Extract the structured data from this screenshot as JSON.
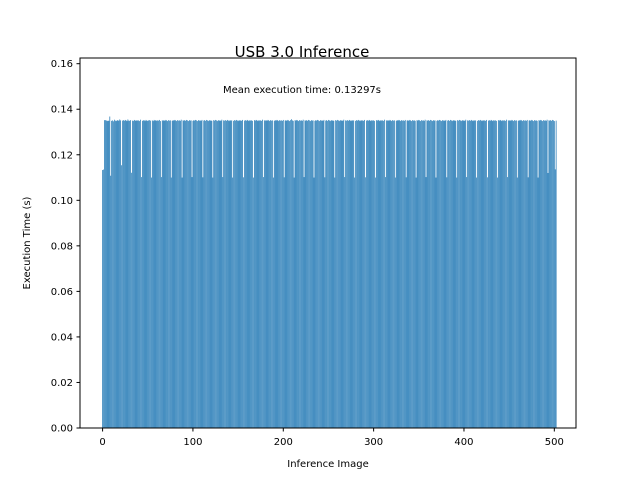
{
  "chart_data": {
    "type": "bar",
    "title": "USB 3.0 Inference",
    "xlabel": "Inference Image",
    "ylabel": "Execution Time (s)",
    "annotation": "Mean execution time: 0.13297s",
    "xlim": [
      -25,
      524
    ],
    "ylim": [
      0,
      0.1625
    ],
    "xticks": [
      0,
      100,
      200,
      300,
      400,
      500
    ],
    "yticks": [
      0.0,
      0.02,
      0.04,
      0.06,
      0.08,
      0.1,
      0.12,
      0.14,
      0.16
    ],
    "ytick_labels": [
      "0.00",
      "0.02",
      "0.04",
      "0.06",
      "0.08",
      "0.10",
      "0.12",
      "0.14",
      "0.16"
    ],
    "grid": false,
    "bar_color": "#1f77b4",
    "bar_width": 0.8,
    "x_start": 0,
    "count": 500,
    "values": [
      0.1133,
      0.1135,
      0.1352,
      0.1352,
      0.1351,
      0.1348,
      0.135,
      0.1349,
      0.1368,
      0.1108,
      0.1349,
      0.1351,
      0.1347,
      0.1354,
      0.135,
      0.1348,
      0.1351,
      0.1352,
      0.1349,
      0.1355,
      0.1351,
      0.1154,
      0.135,
      0.1352,
      0.1349,
      0.1353,
      0.1351,
      0.1348,
      0.1355,
      0.135,
      0.1349,
      0.1352,
      0.1121,
      0.135,
      0.1348,
      0.1353,
      0.1351,
      0.1349,
      0.1352,
      0.135,
      0.1351,
      0.1348,
      0.1354,
      0.1102,
      0.1349,
      0.1351,
      0.1352,
      0.1348,
      0.1353,
      0.135,
      0.1349,
      0.1351,
      0.1352,
      0.135,
      0.11,
      0.1351,
      0.1348,
      0.1353,
      0.135,
      0.1352,
      0.1349,
      0.1351,
      0.135,
      0.1353,
      0.1348,
      0.1102,
      0.1351,
      0.135,
      0.1352,
      0.1349,
      0.1353,
      0.1351,
      0.1348,
      0.1352,
      0.135,
      0.1351,
      0.11,
      0.1349,
      0.1352,
      0.135,
      0.1353,
      0.1351,
      0.1348,
      0.1352,
      0.135,
      0.1351,
      0.1349,
      0.1354,
      0.11,
      0.1351,
      0.135,
      0.1352,
      0.1349,
      0.1353,
      0.1351,
      0.1348,
      0.1352,
      0.135,
      0.1351,
      0.1102,
      0.1349,
      0.1352,
      0.135,
      0.1353,
      0.1351,
      0.1348,
      0.1352,
      0.135,
      0.1351,
      0.1349,
      0.1353,
      0.1101,
      0.135,
      0.1352,
      0.1349,
      0.1353,
      0.1351,
      0.1348,
      0.1352,
      0.135,
      0.1351,
      0.1349,
      0.11,
      0.1352,
      0.135,
      0.1353,
      0.1351,
      0.1348,
      0.1352,
      0.135,
      0.1351,
      0.1349,
      0.1354,
      0.1102,
      0.1351,
      0.135,
      0.1352,
      0.1349,
      0.1353,
      0.1351,
      0.1348,
      0.1352,
      0.135,
      0.1351,
      0.11,
      0.1349,
      0.1352,
      0.135,
      0.1353,
      0.1351,
      0.1348,
      0.1352,
      0.135,
      0.1351,
      0.1349,
      0.1353,
      0.1101,
      0.135,
      0.1352,
      0.1349,
      0.1353,
      0.1351,
      0.1348,
      0.1352,
      0.135,
      0.1351,
      0.1349,
      0.11,
      0.1352,
      0.135,
      0.1353,
      0.1351,
      0.1348,
      0.1352,
      0.135,
      0.1351,
      0.1349,
      0.1354,
      0.1102,
      0.1351,
      0.135,
      0.1352,
      0.1349,
      0.1353,
      0.1351,
      0.1348,
      0.1352,
      0.135,
      0.1351,
      0.11,
      0.1349,
      0.1352,
      0.135,
      0.1353,
      0.1351,
      0.1348,
      0.1352,
      0.135,
      0.1351,
      0.1349,
      0.1353,
      0.1101,
      0.135,
      0.1352,
      0.1349,
      0.1353,
      0.1351,
      0.1348,
      0.1352,
      0.1356,
      0.1351,
      0.1349,
      0.11,
      0.1352,
      0.135,
      0.1353,
      0.1351,
      0.1348,
      0.1352,
      0.135,
      0.1351,
      0.1349,
      0.1354,
      0.1102,
      0.1351,
      0.135,
      0.1352,
      0.1349,
      0.1353,
      0.1351,
      0.1348,
      0.1352,
      0.135,
      0.1351,
      0.11,
      0.1349,
      0.1352,
      0.135,
      0.1353,
      0.1351,
      0.1348,
      0.1352,
      0.135,
      0.1351,
      0.1349,
      0.1353,
      0.1101,
      0.135,
      0.1352,
      0.1349,
      0.1353,
      0.1351,
      0.1348,
      0.1352,
      0.135,
      0.1351,
      0.1349,
      0.11,
      0.1352,
      0.135,
      0.1353,
      0.1351,
      0.1348,
      0.1352,
      0.135,
      0.1351,
      0.1349,
      0.1354,
      0.1102,
      0.1351,
      0.135,
      0.1352,
      0.1349,
      0.1353,
      0.1351,
      0.1348,
      0.1352,
      0.135,
      0.1351,
      0.11,
      0.1349,
      0.1352,
      0.135,
      0.1353,
      0.1351,
      0.1348,
      0.1352,
      0.135,
      0.1351,
      0.1349,
      0.1353,
      0.1101,
      0.135,
      0.1352,
      0.1349,
      0.1353,
      0.1351,
      0.1348,
      0.1352,
      0.135,
      0.1351,
      0.1349,
      0.11,
      0.1352,
      0.135,
      0.1353,
      0.1351,
      0.1348,
      0.1352,
      0.135,
      0.1351,
      0.1349,
      0.1354,
      0.1102,
      0.1351,
      0.135,
      0.1352,
      0.1349,
      0.1353,
      0.1351,
      0.1348,
      0.1352,
      0.135,
      0.1351,
      0.11,
      0.1349,
      0.1352,
      0.135,
      0.1353,
      0.1351,
      0.1348,
      0.1352,
      0.135,
      0.1351,
      0.1349,
      0.1353,
      0.1101,
      0.135,
      0.1352,
      0.1349,
      0.1353,
      0.1351,
      0.1348,
      0.1352,
      0.135,
      0.1351,
      0.1349,
      0.11,
      0.1352,
      0.135,
      0.1353,
      0.1351,
      0.1348,
      0.1352,
      0.135,
      0.1351,
      0.1349,
      0.1354,
      0.1102,
      0.1351,
      0.135,
      0.1352,
      0.1349,
      0.1353,
      0.1351,
      0.1348,
      0.1352,
      0.135,
      0.1351,
      0.11,
      0.1349,
      0.1352,
      0.135,
      0.1353,
      0.1351,
      0.1348,
      0.1352,
      0.135,
      0.1351,
      0.1349,
      0.1353,
      0.1101,
      0.135,
      0.1352,
      0.1349,
      0.1353,
      0.1351,
      0.1348,
      0.1352,
      0.135,
      0.1351,
      0.1349,
      0.11,
      0.1352,
      0.135,
      0.1353,
      0.1351,
      0.1348,
      0.1352,
      0.135,
      0.1351,
      0.1349,
      0.1354,
      0.1102,
      0.1351,
      0.135,
      0.1352,
      0.1349,
      0.1353,
      0.1351,
      0.1348,
      0.1352,
      0.135,
      0.1351,
      0.11,
      0.1349,
      0.1352,
      0.135,
      0.1353,
      0.1351,
      0.1348,
      0.1352,
      0.135,
      0.1351,
      0.1349,
      0.1353,
      0.1101,
      0.135,
      0.1352,
      0.1349,
      0.1353,
      0.1351,
      0.1348,
      0.1352,
      0.135,
      0.1351,
      0.1349,
      0.11,
      0.1352,
      0.135,
      0.1353,
      0.1351,
      0.1348,
      0.1352,
      0.135,
      0.1351,
      0.1349,
      0.1354,
      0.1102,
      0.1351,
      0.135,
      0.1352,
      0.1349,
      0.1353,
      0.1351,
      0.1348,
      0.1352,
      0.135,
      0.1351,
      0.11,
      0.1349,
      0.1352,
      0.135,
      0.1353,
      0.1351,
      0.1348,
      0.1352,
      0.135,
      0.1351,
      0.1349,
      0.1353,
      0.1101,
      0.135,
      0.1352,
      0.1349,
      0.1353,
      0.1351,
      0.1348,
      0.1352,
      0.135,
      0.1351,
      0.1349,
      0.11,
      0.1352,
      0.135,
      0.1353,
      0.1351,
      0.1348,
      0.1352,
      0.135,
      0.1351,
      0.1349,
      0.1354,
      0.112,
      0.1351,
      0.135,
      0.1352,
      0.1349,
      0.1353,
      0.1351,
      0.1348,
      0.1136,
      0.135
    ]
  }
}
